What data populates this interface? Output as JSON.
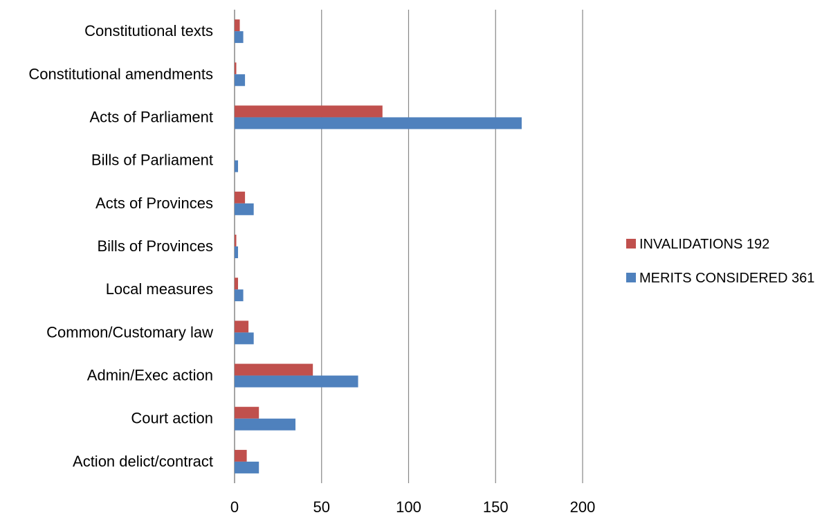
{
  "chart_data": {
    "type": "bar",
    "orientation": "horizontal",
    "categories": [
      "Constitutional texts",
      "Constitutional amendments",
      "Acts of Parliament",
      "Bills of Parliament",
      "Acts of Provinces",
      "Bills of Provinces",
      "Local measures",
      "Common/Customary law",
      "Admin/Exec action",
      "Court action",
      "Action delict/contract"
    ],
    "series": [
      {
        "name": "INVALIDATIONS 192",
        "color": "#C0504D",
        "values": [
          3,
          1,
          85,
          0,
          6,
          1,
          2,
          8,
          45,
          14,
          7
        ]
      },
      {
        "name": "MERITS CONSIDERED 361",
        "color": "#4F81BD",
        "values": [
          5,
          6,
          165,
          2,
          11,
          2,
          5,
          11,
          71,
          35,
          14
        ]
      }
    ],
    "xlim": [
      0,
      200
    ],
    "xticks": [
      "0",
      "50",
      "100",
      "150",
      "200"
    ],
    "grid": "vertical",
    "legend": "right"
  }
}
